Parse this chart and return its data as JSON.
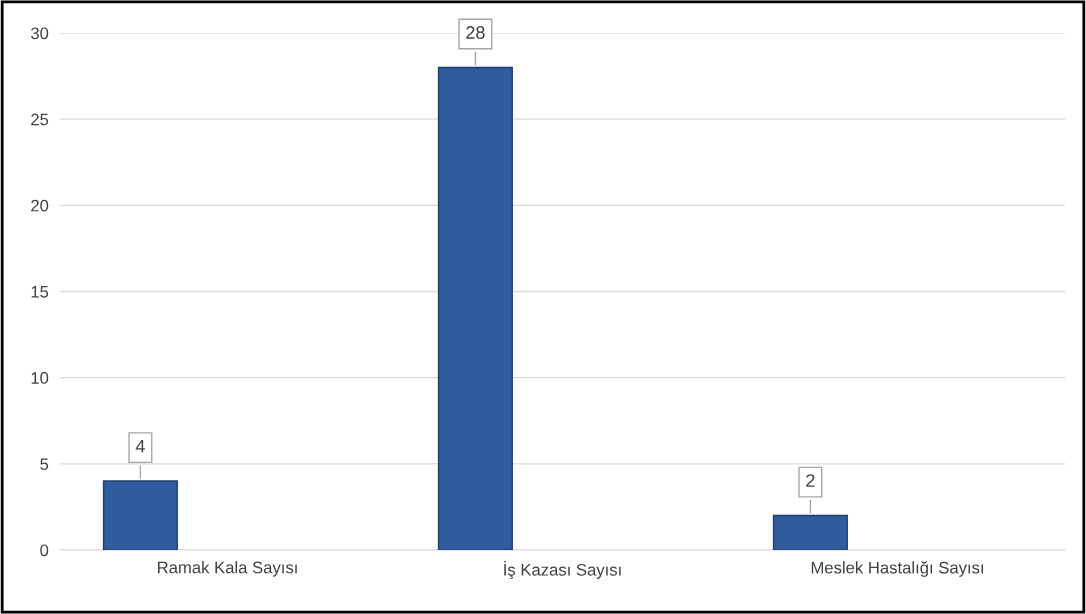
{
  "chart_data": {
    "type": "bar",
    "categories": [
      "Ramak Kala Sayısı",
      "İş Kazası Sayısı",
      "Meslek Hastalığı Sayısı"
    ],
    "values": [
      4,
      28,
      2
    ],
    "color": "#2e5c9c",
    "ylim": [
      0,
      30
    ],
    "yticks": [
      0,
      5,
      10,
      15,
      20,
      25,
      30
    ],
    "grid": "y",
    "data_labels": true
  }
}
